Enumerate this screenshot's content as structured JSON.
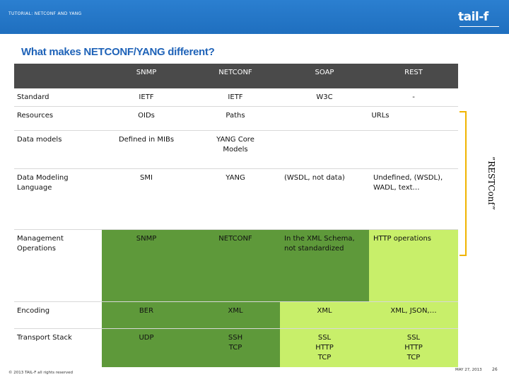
{
  "header": {
    "label": "TUTORIAL: NETCONF AND YANG",
    "logo_text": "tail-f"
  },
  "title": "What makes NETCONF/YANG different?",
  "table": {
    "columns": [
      "",
      "SNMP",
      "NETCONF",
      "SOAP",
      "REST"
    ],
    "rows": [
      {
        "label": "Standard",
        "cells": [
          "IETF",
          "IETF",
          "W3C",
          "-"
        ]
      },
      {
        "label": "Resources",
        "cells": [
          "OIDs",
          "Paths",
          "URLs"
        ]
      },
      {
        "label": "Data models",
        "cells": [
          "Defined in MIBs",
          "YANG Core Models",
          "",
          ""
        ]
      },
      {
        "label": "Data Modeling Language",
        "cells": [
          "SMI",
          "YANG",
          "(WSDL, not data)",
          "Undefined, (WSDL), WADL, text…"
        ]
      },
      {
        "label": "Management Operations",
        "cells": [
          "SNMP",
          "NETCONF",
          "In the XML Schema, not standardized",
          "HTTP operations"
        ]
      },
      {
        "label": "Encoding",
        "cells": [
          "BER",
          "XML",
          "XML",
          "XML, JSON,…"
        ]
      },
      {
        "label": "Transport Stack",
        "cells": [
          "UDP",
          "SSH\nTCP",
          "SSL\nHTTP\nTCP",
          "SSL\nHTTP\nTCP"
        ]
      }
    ]
  },
  "side_label": "”RESTConf”",
  "colors": {
    "header_blue": "#1f6fbf",
    "title_blue": "#1f63b8",
    "dark_green": "#5e993a",
    "light_green": "#c8ef6a",
    "bracket_orange": "#f0b400"
  },
  "footer": {
    "copyright": "© 2013 TAIL-F all rights reserved",
    "date": "MAY 27, 2013",
    "page": "26"
  }
}
